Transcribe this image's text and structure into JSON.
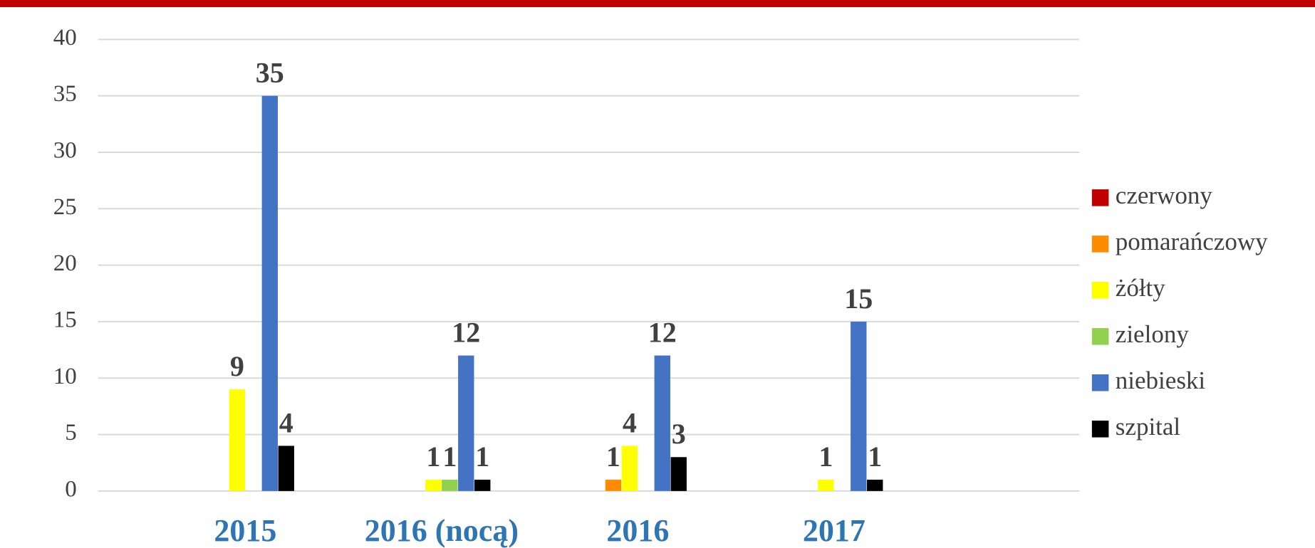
{
  "chart_data": {
    "type": "bar",
    "categories": [
      "2015",
      "2016 (nocą)",
      "2016",
      "2017"
    ],
    "series": [
      {
        "name": "czerwony",
        "color": "#c00000",
        "values": [
          null,
          null,
          null,
          null
        ]
      },
      {
        "name": "pomarańczowy",
        "color": "#ff8c00",
        "values": [
          null,
          null,
          1,
          null
        ]
      },
      {
        "name": "żółty",
        "color": "#ffff00",
        "values": [
          9,
          1,
          4,
          1
        ]
      },
      {
        "name": "zielony",
        "color": "#92d050",
        "values": [
          null,
          1,
          null,
          null
        ]
      },
      {
        "name": "niebieski",
        "color": "#4472c4",
        "values": [
          35,
          12,
          12,
          15
        ]
      },
      {
        "name": "szpital",
        "color": "#000000",
        "values": [
          4,
          1,
          3,
          1
        ]
      }
    ],
    "ylim": [
      0,
      40
    ],
    "yticks": [
      0,
      5,
      10,
      15,
      20,
      25,
      30,
      35,
      40
    ],
    "grid": true,
    "legend": "right"
  }
}
